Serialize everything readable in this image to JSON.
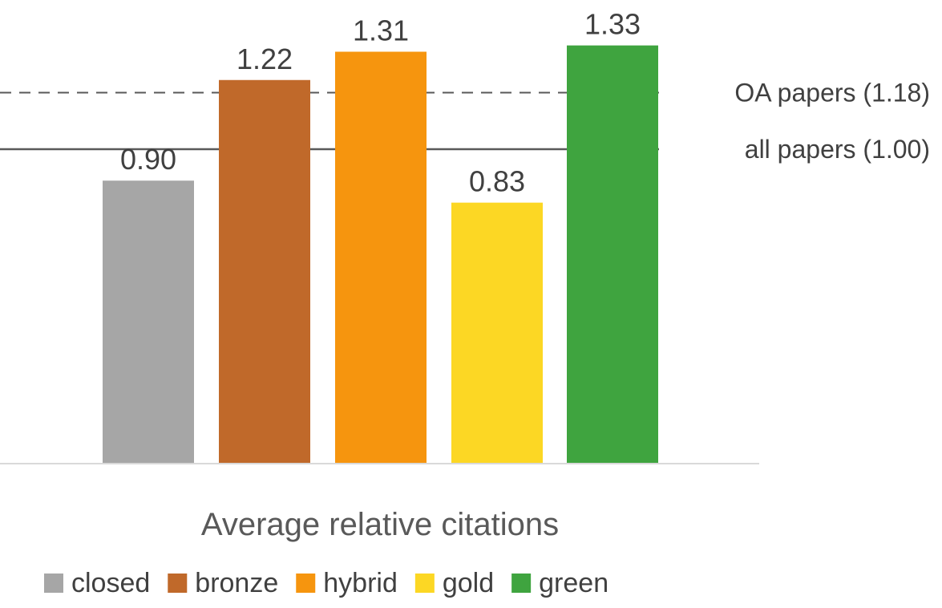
{
  "chart_data": {
    "type": "bar",
    "title": "",
    "xlabel": "Average relative citations",
    "ylabel": "",
    "ylim": [
      0,
      1.45
    ],
    "grid": false,
    "legend_position": "bottom",
    "categories": [
      "closed",
      "bronze",
      "hybrid",
      "gold",
      "green"
    ],
    "values": [
      0.9,
      1.22,
      1.31,
      0.83,
      1.33
    ],
    "value_labels": [
      "0.90",
      "1.22",
      "1.31",
      "0.83",
      "1.33"
    ],
    "colors": [
      "#a6a6a6",
      "#c0692a",
      "#f6950e",
      "#fcd724",
      "#3fa43f"
    ],
    "reference_lines": [
      {
        "label": "OA papers (1.18)",
        "value": 1.18,
        "style": "dashed",
        "color": "#595959"
      },
      {
        "label": "all papers (1.00)",
        "value": 1.0,
        "style": "solid",
        "color": "#595959"
      }
    ],
    "legend": [
      "closed",
      "bronze",
      "hybrid",
      "gold",
      "green"
    ]
  }
}
